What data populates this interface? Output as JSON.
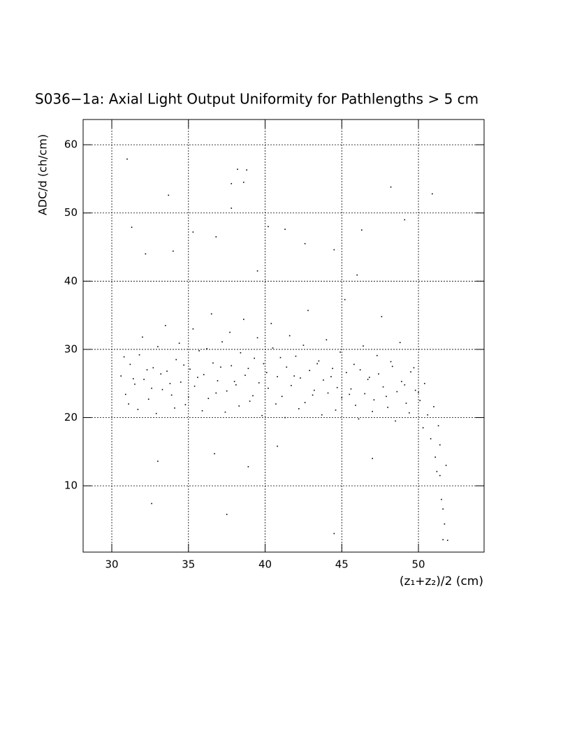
{
  "chart_data": {
    "type": "scatter",
    "title": "S036−1a: Axial Light Output Uniformity for Pathlengths > 5 cm",
    "x_label": "(z₁+z₂)/2 (cm)",
    "y_label": "ADC/d (ch/cm)",
    "color": "#000000",
    "grid": true,
    "xlim": [
      28.13,
      54.28
    ],
    "ylim": [
      0.28,
      63.7
    ],
    "xticks": [
      30,
      35,
      40,
      45,
      50
    ],
    "yticks": [
      10,
      20,
      30,
      40,
      50,
      60
    ],
    "series": [
      {
        "name": null,
        "x": [
          30.6,
          30.9,
          31.2,
          31.5,
          31.8,
          32.1,
          32.4,
          32.7,
          33.0,
          33.3,
          33.6,
          33.9,
          34.2,
          34.5,
          34.8,
          35.1,
          35.4,
          35.7,
          36.0,
          36.3,
          36.6,
          36.9,
          37.2,
          37.5,
          37.8,
          38.1,
          38.4,
          38.7,
          39.0,
          39.3,
          39.6,
          39.9,
          40.2,
          40.5,
          40.8,
          41.1,
          41.4,
          41.7,
          42.0,
          42.3,
          42.6,
          42.9,
          43.2,
          43.5,
          43.8,
          44.1,
          44.4,
          44.7,
          45.0,
          45.3,
          45.6,
          45.9,
          46.2,
          46.5,
          46.8,
          47.1,
          47.4,
          47.7,
          48.0,
          48.3,
          48.6,
          48.9,
          49.2,
          49.5,
          49.8,
          50.1,
          50.4,
          30.8,
          31.1,
          31.4,
          31.7,
          32.0,
          32.3,
          32.6,
          32.9,
          33.2,
          33.5,
          33.8,
          34.1,
          34.4,
          34.7,
          35.0,
          35.3,
          35.6,
          35.9,
          36.2,
          36.5,
          36.8,
          37.1,
          37.4,
          37.7,
          38.0,
          38.3,
          38.6,
          38.9,
          39.2,
          39.5,
          39.8,
          40.1,
          40.4,
          40.7,
          41.0,
          41.3,
          41.6,
          41.9,
          42.2,
          42.5,
          42.8,
          43.1,
          43.4,
          43.7,
          44.0,
          44.3,
          44.6,
          44.9,
          45.2,
          45.5,
          45.8,
          46.1,
          46.4,
          46.7,
          47.0,
          47.3,
          47.6,
          47.9,
          48.2,
          48.5,
          48.8,
          49.1,
          49.4,
          49.7,
          50.0,
          50.3,
          50.6,
          50.8,
          51.0,
          51.1,
          51.2,
          51.3,
          51.4,
          51.5,
          51.6,
          51.7,
          51.8,
          51.6,
          51.9,
          51.4,
          31.0,
          31.3,
          32.2,
          33.7,
          34.0,
          35.3,
          36.8,
          37.8,
          38.2,
          38.6,
          38.8,
          37.8,
          39.5,
          40.2,
          41.3,
          42.6,
          44.5,
          46.0,
          48.2,
          49.1,
          50.9,
          46.3,
          33.0,
          32.6,
          37.5,
          44.5,
          38.9,
          36.7,
          40.8,
          47.0
        ],
        "values": [
          26.1,
          23.4,
          27.8,
          24.9,
          29.2,
          25.6,
          22.7,
          27.3,
          30.4,
          24.1,
          26.8,
          23.3,
          28.5,
          25.2,
          21.9,
          27.1,
          24.6,
          29.8,
          26.3,
          22.8,
          28.0,
          25.4,
          31.1,
          23.9,
          27.6,
          24.8,
          29.5,
          26.2,
          22.4,
          28.7,
          25.1,
          27.9,
          24.3,
          30.2,
          26.0,
          23.1,
          27.4,
          24.7,
          29.0,
          25.8,
          22.2,
          26.9,
          24.0,
          28.3,
          25.5,
          23.6,
          27.2,
          24.4,
          22.9,
          26.6,
          24.2,
          21.8,
          27.0,
          23.5,
          25.9,
          22.6,
          26.4,
          24.5,
          21.5,
          27.5,
          23.8,
          25.3,
          22.1,
          26.7,
          24.0,
          22.5,
          25.0,
          28.9,
          22.0,
          25.7,
          21.2,
          31.8,
          27.0,
          24.3,
          20.6,
          26.4,
          33.5,
          25.0,
          21.4,
          30.9,
          27.7,
          23.0,
          33.0,
          25.9,
          21.0,
          30.1,
          35.2,
          23.6,
          27.4,
          20.8,
          32.5,
          25.3,
          21.7,
          34.4,
          27.2,
          23.2,
          31.7,
          20.3,
          26.6,
          33.8,
          22.0,
          28.8,
          20.0,
          32.0,
          26.1,
          21.3,
          30.6,
          35.7,
          23.3,
          27.9,
          20.4,
          31.4,
          26.0,
          21.1,
          29.6,
          37.3,
          23.4,
          27.8,
          19.8,
          30.5,
          25.6,
          20.9,
          29.1,
          34.8,
          23.1,
          28.2,
          19.5,
          31.0,
          24.8,
          20.7,
          27.3,
          23.7,
          18.5,
          20.4,
          16.9,
          21.6,
          14.2,
          12.1,
          18.8,
          11.5,
          8.0,
          6.6,
          4.4,
          13.0,
          2.1,
          2.0,
          16.0,
          57.9,
          47.9,
          44.0,
          52.6,
          44.4,
          47.2,
          46.5,
          54.3,
          56.4,
          54.5,
          56.3,
          50.7,
          41.5,
          48.0,
          47.6,
          45.5,
          44.6,
          40.9,
          53.8,
          49.0,
          52.8,
          47.5,
          13.6,
          7.4,
          5.8,
          3.0,
          12.8,
          14.7,
          15.8,
          14.0
        ]
      }
    ]
  }
}
